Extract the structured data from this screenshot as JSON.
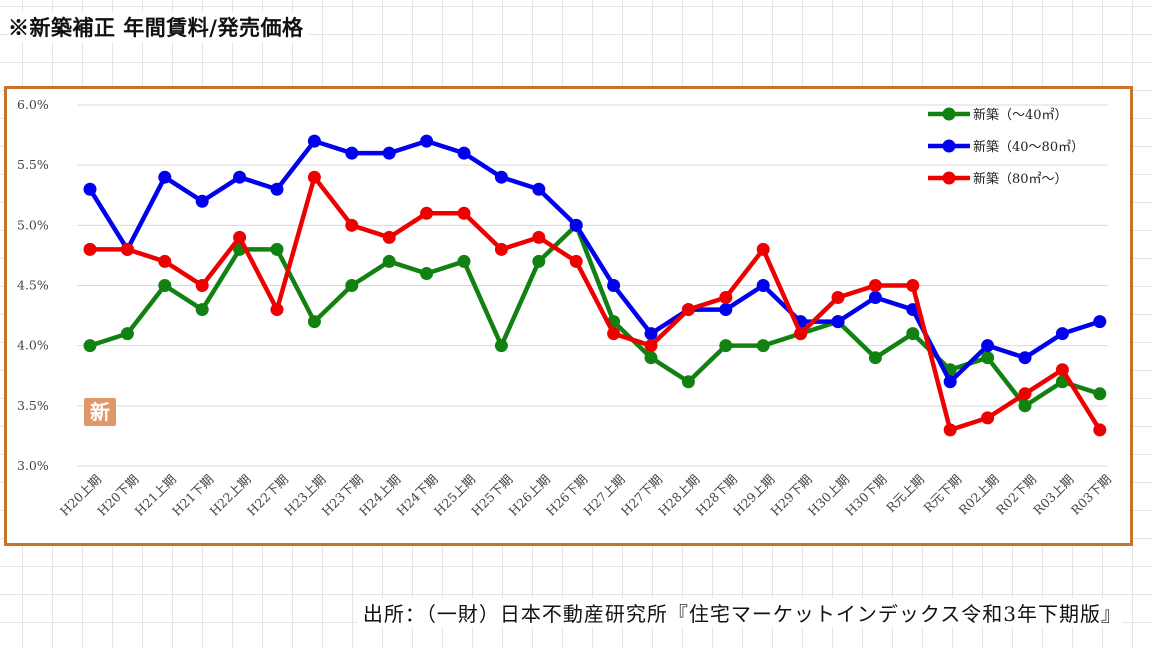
{
  "title": "※新築補正 年間賃料/発売価格",
  "source": "出所：（一財）日本不動産研究所『住宅マーケットインデックス令和3年下期版』",
  "badge": "新",
  "chart_data": {
    "type": "line",
    "categories": [
      "H20上期",
      "H20下期",
      "H21上期",
      "H21下期",
      "H22上期",
      "H22下期",
      "H23上期",
      "H23下期",
      "H24上期",
      "H24下期",
      "H25上期",
      "H25下期",
      "H26上期",
      "H26下期",
      "H27上期",
      "H27下期",
      "H28上期",
      "H28下期",
      "H29上期",
      "H29下期",
      "H30上期",
      "H30下期",
      "R元上期",
      "R元下期",
      "R02上期",
      "R02下期",
      "R03上期",
      "R03下期"
    ],
    "ylim": [
      3.0,
      6.0
    ],
    "yticks": [
      {
        "value": 3.0,
        "label": "3.0%"
      },
      {
        "value": 3.5,
        "label": "3.5%"
      },
      {
        "value": 4.0,
        "label": "4.0%"
      },
      {
        "value": 4.5,
        "label": "4.5%"
      },
      {
        "value": 5.0,
        "label": "5.0%"
      },
      {
        "value": 5.5,
        "label": "5.5%"
      },
      {
        "value": 6.0,
        "label": "6.0%"
      }
    ],
    "legend_position": "top-right",
    "series": [
      {
        "name": "新築（～40㎡）",
        "color": "#118211",
        "values": [
          4.0,
          4.1,
          4.5,
          4.3,
          4.8,
          4.8,
          4.2,
          4.5,
          4.7,
          4.6,
          4.7,
          4.0,
          4.7,
          5.0,
          4.2,
          3.9,
          3.7,
          4.0,
          4.0,
          4.1,
          4.2,
          3.9,
          4.1,
          3.8,
          3.9,
          3.5,
          3.7,
          3.6
        ]
      },
      {
        "name": "新築（40～80㎡）",
        "color": "#0000ee",
        "values": [
          5.3,
          4.8,
          5.4,
          5.2,
          5.4,
          5.3,
          5.7,
          5.6,
          5.6,
          5.7,
          5.6,
          5.4,
          5.3,
          5.0,
          4.5,
          4.1,
          4.3,
          4.3,
          4.5,
          4.2,
          4.2,
          4.4,
          4.3,
          3.7,
          4.0,
          3.9,
          4.1,
          4.2
        ]
      },
      {
        "name": "新築（80㎡～）",
        "color": "#ee0000",
        "values": [
          4.8,
          4.8,
          4.7,
          4.5,
          4.9,
          4.3,
          5.4,
          5.0,
          4.9,
          5.1,
          5.1,
          4.8,
          4.9,
          4.7,
          4.1,
          4.0,
          4.3,
          4.4,
          4.8,
          4.1,
          4.4,
          4.5,
          4.5,
          3.3,
          3.4,
          3.6,
          3.8,
          3.3
        ]
      }
    ]
  }
}
